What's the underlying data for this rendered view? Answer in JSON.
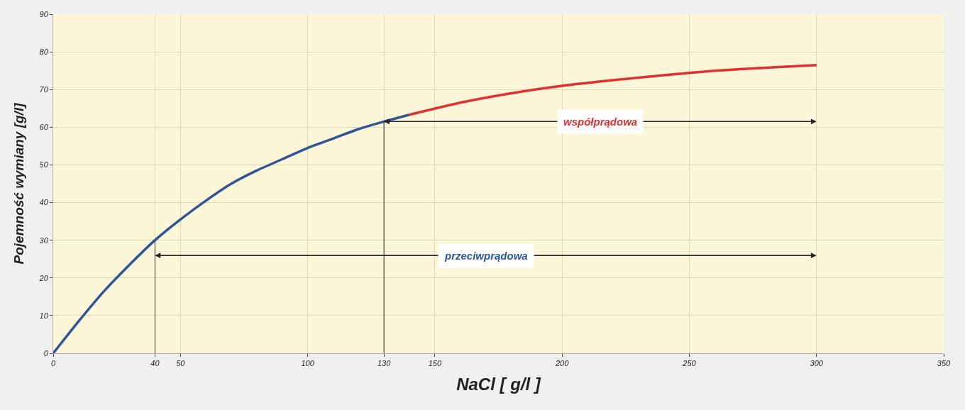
{
  "chart_data": {
    "type": "line",
    "xlabel": "NaCl [ g/l ]",
    "ylabel": "Pojemność wymiany [g/l]",
    "series": [
      {
        "color": "#2f5597",
        "x": [
          0,
          10,
          20,
          30,
          40,
          50,
          60,
          70,
          80,
          90,
          100,
          110,
          120,
          130,
          140
        ],
        "values": [
          0,
          8.5,
          16.5,
          23.5,
          30,
          35.5,
          40.5,
          45,
          48.5,
          51.5,
          54.5,
          57,
          59.5,
          61.5,
          63.3
        ]
      },
      {
        "color": "#e03030",
        "x": [
          140,
          160,
          180,
          200,
          220,
          240,
          260,
          280,
          300
        ],
        "values": [
          63.3,
          66.5,
          69,
          71,
          72.5,
          73.8,
          75,
          75.8,
          76.5
        ]
      }
    ],
    "xlim": [
      0,
      350
    ],
    "ylim": [
      0,
      90
    ],
    "xticks": [
      0,
      {
        "value": 40,
        "label": "40"
      },
      50,
      100,
      {
        "value": 130,
        "label": "130"
      },
      150,
      200,
      250,
      300,
      350
    ],
    "yticks": [
      0,
      10,
      20,
      30,
      40,
      50,
      60,
      70,
      80,
      90
    ],
    "grid": true,
    "ref_lines": [
      {
        "axis": "x",
        "value": 40,
        "color": "#333333"
      },
      {
        "axis": "x",
        "value": 130,
        "color": "#333333"
      }
    ],
    "annotations": [
      "przeciwprądowa",
      "współprądowa"
    ]
  }
}
